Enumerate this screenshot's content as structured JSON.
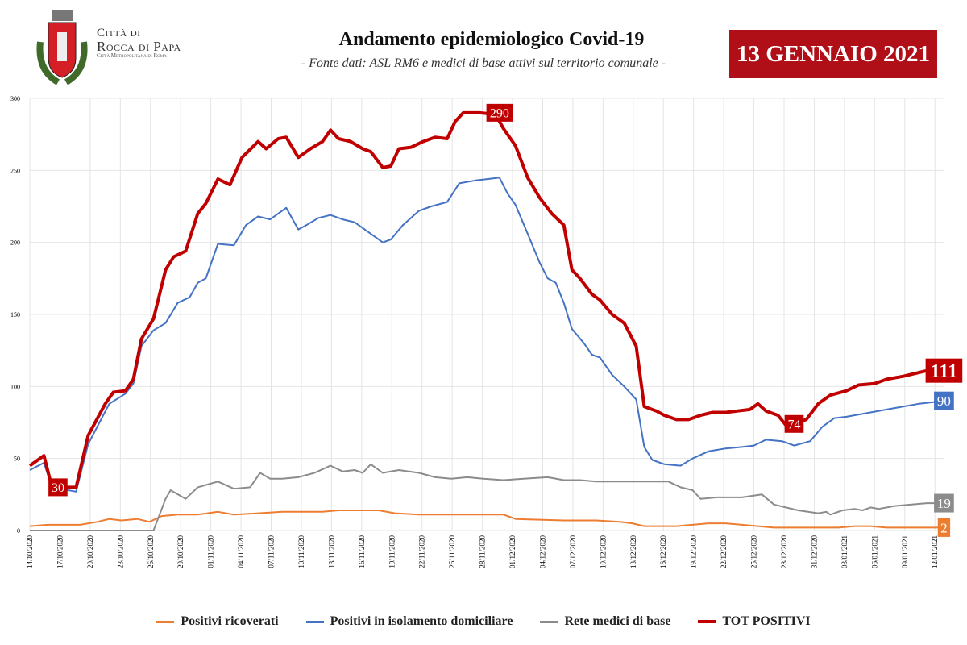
{
  "header": {
    "town_line1": "Città di",
    "town_line2": "Rocca di Papa",
    "town_line3": "Città Metropolitana di Roma",
    "title": "Andamento epidemiologico Covid-19",
    "subtitle": "- Fonte dati: ASL RM6 e medici di base attivi sul territorio comunale -",
    "date": "13 GENNAIO 2021"
  },
  "chart_data": {
    "type": "line",
    "title": "Andamento epidemiologico Covid-19",
    "x_unit": "days since 14/10/2020",
    "xlim": [
      0,
      91
    ],
    "ylim": [
      0,
      300
    ],
    "grid": true,
    "yticks": [
      0,
      50,
      100,
      150,
      200,
      250,
      300
    ],
    "xtick_labels": [
      "14/10/2020",
      "17/10/2020",
      "20/10/2020",
      "23/10/2020",
      "26/10/2020",
      "29/10/2020",
      "01/11/2020",
      "04/11/2020",
      "07/11/2020",
      "10/11/2020",
      "13/11/2020",
      "16/11/2020",
      "19/11/2020",
      "22/11/2020",
      "25/11/2020",
      "28/11/2020",
      "01/12/2020",
      "04/12/2020",
      "07/12/2020",
      "10/12/2020",
      "13/12/2020",
      "16/12/2020",
      "19/12/2020",
      "22/12/2020",
      "25/12/2020",
      "28/12/2020",
      "31/12/2020",
      "03/01/2021",
      "06/01/2021",
      "09/01/2021",
      "12/01/2021"
    ],
    "legend_position": "bottom",
    "series": [
      {
        "name": "Positivi ricoverati",
        "color": "#ed7d31",
        "end_label": "2",
        "x": [
          0,
          1.8,
          5,
          6.7,
          7.9,
          9.1,
          10.7,
          11.9,
          13.1,
          14.7,
          16.7,
          18.7,
          20.3,
          22.7,
          25.1,
          29.1,
          30.7,
          34.7,
          36.3,
          38.7,
          41.9,
          45.1,
          47.1,
          48.3,
          53.1,
          56.3,
          58.7,
          59.9,
          61.1,
          64.3,
          65.9,
          67.5,
          69.2,
          70.8,
          72.4,
          74,
          80.4,
          82,
          83.6,
          85.2,
          90.9
        ],
        "y": [
          3,
          4,
          4,
          6,
          8,
          7,
          8,
          6,
          10,
          11,
          11,
          13,
          11,
          12,
          13,
          13,
          14,
          14,
          12,
          11,
          11,
          11,
          11,
          8,
          7,
          7,
          6,
          5,
          3,
          3,
          4,
          5,
          5,
          4,
          3,
          2,
          2,
          3,
          3,
          2,
          2
        ]
      },
      {
        "name": "Positivi in isolamento domiciliare",
        "color": "#4472c4",
        "end_label": "90",
        "x": [
          0,
          1.4,
          2.2,
          4.6,
          5.8,
          7.9,
          9.5,
          10.3,
          11.1,
          12.3,
          13.5,
          14.7,
          15.9,
          16.7,
          17.5,
          18.7,
          20.3,
          21.5,
          22.7,
          23.9,
          25.5,
          26.7,
          27.5,
          28.7,
          29.9,
          31.1,
          32.3,
          33.9,
          35.1,
          35.9,
          37.1,
          38.7,
          39.9,
          41.5,
          42.7,
          44.3,
          45.5,
          46.7,
          47.5,
          48.3,
          49.5,
          50.7,
          51.5,
          52.3,
          53.1,
          53.9,
          55.1,
          55.9,
          56.7,
          57.9,
          59.1,
          60.3,
          61.1,
          61.9,
          63.1,
          64.7,
          65.9,
          67.5,
          69.2,
          70.8,
          72,
          73.2,
          74.8,
          76,
          77.6,
          78.8,
          80,
          81.2,
          83.6,
          85.2,
          88.4,
          90.9
        ],
        "y": [
          42,
          47,
          30,
          27,
          60,
          88,
          95,
          102,
          128,
          139,
          144,
          158,
          162,
          172,
          175,
          199,
          198,
          212,
          218,
          216,
          224,
          209,
          212,
          217,
          219,
          216,
          214,
          206,
          200,
          202,
          212,
          222,
          225,
          228,
          241,
          243,
          244,
          245,
          234,
          226,
          206,
          186,
          175,
          172,
          158,
          140,
          130,
          122,
          120,
          108,
          100,
          91,
          58,
          49,
          46,
          45,
          50,
          55,
          57,
          58,
          59,
          63,
          62,
          59,
          62,
          72,
          78,
          79,
          82,
          84,
          88,
          90
        ]
      },
      {
        "name": "Rete medici di base",
        "color": "#8c8c8c",
        "end_label": "19",
        "x": [
          0,
          12.3,
          13.5,
          14,
          15.5,
          16.7,
          18.7,
          20.3,
          21.9,
          22.9,
          23.9,
          25.1,
          26.7,
          28.3,
          29.9,
          31.1,
          32.3,
          33.1,
          33.9,
          35.1,
          36.7,
          38.7,
          40.3,
          41.9,
          43.5,
          45.1,
          47.1,
          49.1,
          51.5,
          53.1,
          54.7,
          56.3,
          61.1,
          63.5,
          64.7,
          65.9,
          66.7,
          68.3,
          70.8,
          72.8,
          74,
          76.4,
          78.4,
          79.2,
          79.6,
          80.8,
          82,
          82.8,
          83.6,
          84.4,
          86,
          89.2,
          90.9
        ],
        "y": [
          0,
          0,
          22,
          28,
          22,
          30,
          34,
          29,
          30,
          40,
          36,
          36,
          37,
          40,
          45,
          41,
          42,
          40,
          46,
          40,
          42,
          40,
          37,
          36,
          37,
          36,
          35,
          36,
          37,
          35,
          35,
          34,
          34,
          34,
          30,
          28,
          22,
          23,
          23,
          25,
          18,
          14,
          12,
          13,
          11,
          14,
          15,
          14,
          16,
          15,
          17,
          19,
          19
        ]
      },
      {
        "name": "TOT POSITIVI",
        "color": "#c00000",
        "end_label": "111",
        "x": [
          0,
          1.4,
          2.2,
          4.6,
          5.8,
          7.5,
          8.3,
          9.5,
          10.3,
          11.1,
          12.3,
          13.5,
          14.3,
          15.5,
          16.7,
          17.5,
          18.7,
          19.9,
          21.1,
          22.7,
          23.5,
          24.7,
          25.5,
          26.7,
          27.9,
          29.1,
          29.9,
          30.7,
          31.9,
          33.1,
          33.9,
          35.1,
          35.9,
          36.7,
          37.9,
          39.1,
          40.3,
          41.5,
          42.3,
          43.1,
          44.7,
          46.3,
          47.1,
          48.3,
          49.5,
          50.7,
          51.9,
          53.1,
          53.9,
          54.7,
          55.9,
          56.7,
          57.9,
          59.1,
          60.3,
          61.1,
          62.3,
          63.1,
          64.3,
          65.5,
          66.7,
          67.9,
          69.2,
          70.4,
          71.6,
          72.4,
          73.2,
          74.4,
          75.2,
          76,
          77.2,
          78.4,
          79.6,
          81.2,
          82.4,
          84,
          85.2,
          86.8,
          89.2,
          90.9
        ],
        "y": [
          45,
          52,
          30,
          30,
          66,
          88,
          96,
          97,
          105,
          133,
          147,
          181,
          190,
          194,
          220,
          227,
          244,
          240,
          259,
          270,
          265,
          272,
          273,
          259,
          265,
          270,
          278,
          272,
          270,
          265,
          263,
          252,
          253,
          265,
          266,
          270,
          273,
          272,
          284,
          290,
          290,
          289,
          279,
          267,
          245,
          231,
          220,
          212,
          181,
          175,
          164,
          160,
          150,
          144,
          128,
          86,
          83,
          80,
          77,
          77,
          80,
          82,
          82,
          83,
          84,
          88,
          83,
          80,
          73,
          74,
          77,
          88,
          94,
          97,
          101,
          102,
          105,
          107,
          111,
          111
        ]
      }
    ],
    "annotations": [
      {
        "series": "TOT POSITIVI",
        "x": 2.8,
        "value": "30"
      },
      {
        "series": "TOT POSITIVI",
        "x": 46.7,
        "value": "290"
      },
      {
        "series": "TOT POSITIVI",
        "x": 76,
        "value": "74"
      }
    ]
  },
  "legend": [
    "Positivi ricoverati",
    "Positivi in isolamento domiciliare",
    "Rete medici di base",
    "TOT POSITIVI"
  ]
}
